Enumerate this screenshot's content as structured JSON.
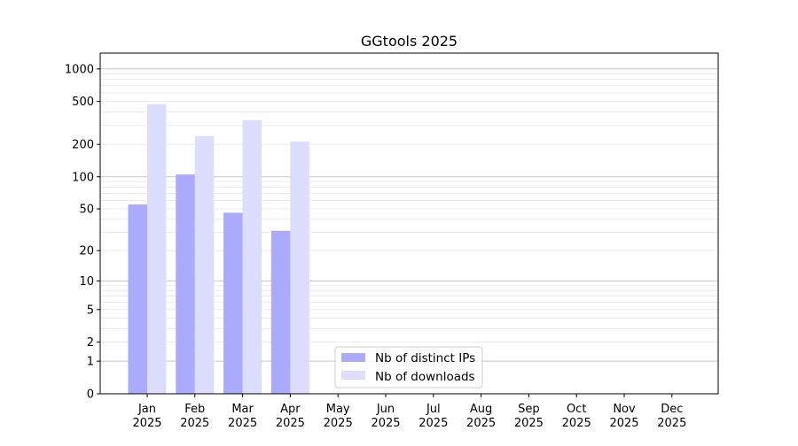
{
  "chart_data": {
    "type": "bar",
    "title": "GGtools 2025",
    "xlabel": "",
    "ylabel": "",
    "yscale": "log10(1+y)",
    "ylim": [
      0,
      1400
    ],
    "yticks": [
      0,
      1,
      2,
      5,
      10,
      20,
      50,
      100,
      200,
      500,
      1000
    ],
    "ytick_labels": [
      "0",
      "1",
      "2",
      "5",
      "10",
      "20",
      "50",
      "100",
      "200",
      "500",
      "1000"
    ],
    "grid": true,
    "legend_position": "bottom-center",
    "categories": [
      "Jan\n2025",
      "Feb\n2025",
      "Mar\n2025",
      "Apr\n2025",
      "May\n2025",
      "Jun\n2025",
      "Jul\n2025",
      "Aug\n2025",
      "Sep\n2025",
      "Oct\n2025",
      "Nov\n2025",
      "Dec\n2025"
    ],
    "category_lines": [
      [
        "Jan",
        "2025"
      ],
      [
        "Feb",
        "2025"
      ],
      [
        "Mar",
        "2025"
      ],
      [
        "Apr",
        "2025"
      ],
      [
        "May",
        "2025"
      ],
      [
        "Jun",
        "2025"
      ],
      [
        "Jul",
        "2025"
      ],
      [
        "Aug",
        "2025"
      ],
      [
        "Sep",
        "2025"
      ],
      [
        "Oct",
        "2025"
      ],
      [
        "Nov",
        "2025"
      ],
      [
        "Dec",
        "2025"
      ]
    ],
    "series": [
      {
        "name": "Nb of distinct IPs",
        "color": "#aaaaff",
        "values": [
          55,
          105,
          46,
          31,
          null,
          null,
          null,
          null,
          null,
          null,
          null,
          null
        ]
      },
      {
        "name": "Nb of downloads",
        "color": "#ddddff",
        "values": [
          471,
          239,
          336,
          213,
          null,
          null,
          null,
          null,
          null,
          null,
          null,
          null
        ]
      }
    ]
  }
}
